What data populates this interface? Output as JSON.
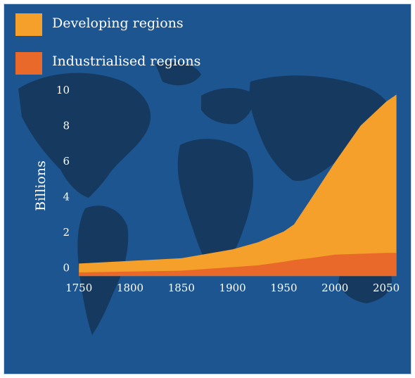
{
  "chart_data": {
    "type": "area",
    "stacked": true,
    "title": "",
    "xlabel": "",
    "ylabel": "Billions",
    "xlim": [
      1743,
      2063
    ],
    "ylim": [
      -1,
      10
    ],
    "x_ticks": [
      1750,
      1800,
      1850,
      1900,
      1950,
      2000,
      2050
    ],
    "y_ticks": [
      0,
      2,
      4,
      6,
      8,
      10
    ],
    "grid": false,
    "legend_placement": "top-left",
    "x": [
      1750,
      1800,
      1850,
      1900,
      1925,
      1950,
      1960,
      1975,
      2000,
      2025,
      2050,
      2060
    ],
    "series": [
      {
        "name": "Industrialised regions",
        "color": "#e8692a",
        "values": [
          0.2,
          0.25,
          0.3,
          0.5,
          0.6,
          0.8,
          0.9,
          1.0,
          1.2,
          1.25,
          1.3,
          1.3
        ]
      },
      {
        "name": "Developing regions",
        "color": "#f5a02a",
        "values": [
          0.5,
          0.6,
          0.7,
          1.0,
          1.3,
          1.7,
          2.0,
          3.2,
          5.2,
          7.2,
          8.5,
          8.9
        ]
      }
    ],
    "background": "#1d5590"
  },
  "legend": [
    {
      "label": "Developing regions",
      "color": "#f5a02a"
    },
    {
      "label": "Industrialised regions",
      "color": "#e8692a"
    }
  ]
}
